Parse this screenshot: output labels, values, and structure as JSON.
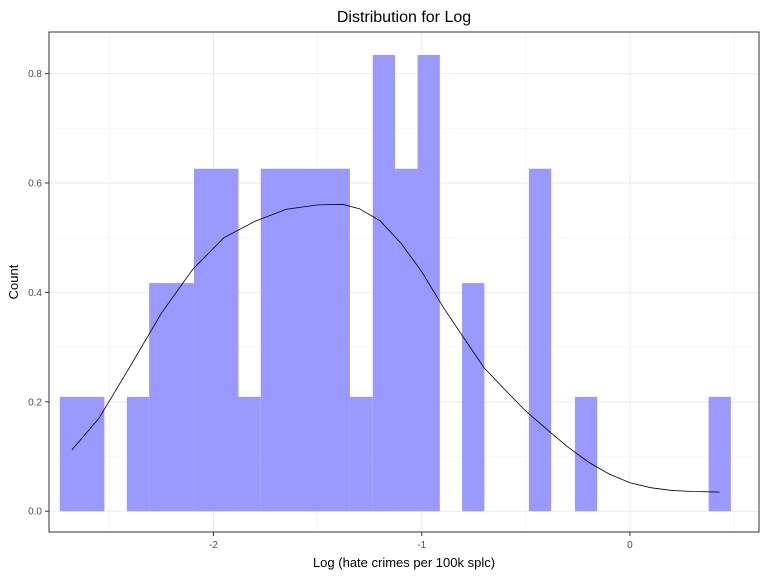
{
  "chart_data": {
    "type": "histogram",
    "title": "Distribution for Log",
    "xlabel": "Log (hate crimes per 100k splc)",
    "ylabel": "Count",
    "xlim": [
      -2.79,
      0.62
    ],
    "ylim": [
      -0.038,
      0.876
    ],
    "x_ticks": [
      -2,
      -1,
      0
    ],
    "y_ticks": [
      0.0,
      0.2,
      0.4,
      0.6,
      0.8
    ],
    "x_tick_labels": [
      "-2",
      "-1",
      "0"
    ],
    "y_tick_labels": [
      "0.0",
      "0.2",
      "0.4",
      "0.6",
      "0.8"
    ],
    "bin_width": 0.1073,
    "bar_color": "#9999ff",
    "bars": [
      {
        "x0": -2.738,
        "x1": -2.524,
        "value": 0.209
      },
      {
        "x0": -2.416,
        "x1": -2.309,
        "value": 0.209
      },
      {
        "x0": -2.309,
        "x1": -2.094,
        "value": 0.417
      },
      {
        "x0": -2.094,
        "x1": -1.88,
        "value": 0.626
      },
      {
        "x0": -1.88,
        "x1": -1.773,
        "value": 0.209
      },
      {
        "x0": -1.773,
        "x1": -1.345,
        "value": 0.626
      },
      {
        "x0": -1.345,
        "x1": -1.235,
        "value": 0.209
      },
      {
        "x0": -1.235,
        "x1": -1.128,
        "value": 0.834
      },
      {
        "x0": -1.128,
        "x1": -1.02,
        "value": 0.626
      },
      {
        "x0": -1.02,
        "x1": -0.913,
        "value": 0.834
      },
      {
        "x0": -0.913,
        "x1": -0.806,
        "value": 0.0
      },
      {
        "x0": -0.806,
        "x1": -0.699,
        "value": 0.417
      },
      {
        "x0": -0.485,
        "x1": -0.378,
        "value": 0.626
      },
      {
        "x0": -0.264,
        "x1": -0.157,
        "value": 0.209
      },
      {
        "x0": 0.378,
        "x1": 0.485,
        "value": 0.209
      }
    ],
    "density_line": {
      "x": [
        -2.68,
        -2.55,
        -2.4,
        -2.25,
        -2.1,
        -1.95,
        -1.8,
        -1.65,
        -1.5,
        -1.38,
        -1.3,
        -1.2,
        -1.1,
        -1.0,
        -0.9,
        -0.8,
        -0.7,
        -0.6,
        -0.5,
        -0.4,
        -0.3,
        -0.2,
        -0.1,
        0.0,
        0.1,
        0.2,
        0.3,
        0.43
      ],
      "y": [
        0.112,
        0.17,
        0.265,
        0.362,
        0.442,
        0.5,
        0.53,
        0.552,
        0.56,
        0.561,
        0.553,
        0.531,
        0.49,
        0.438,
        0.375,
        0.318,
        0.262,
        0.222,
        0.183,
        0.15,
        0.118,
        0.09,
        0.068,
        0.052,
        0.043,
        0.038,
        0.036,
        0.035
      ]
    },
    "grid": true
  }
}
